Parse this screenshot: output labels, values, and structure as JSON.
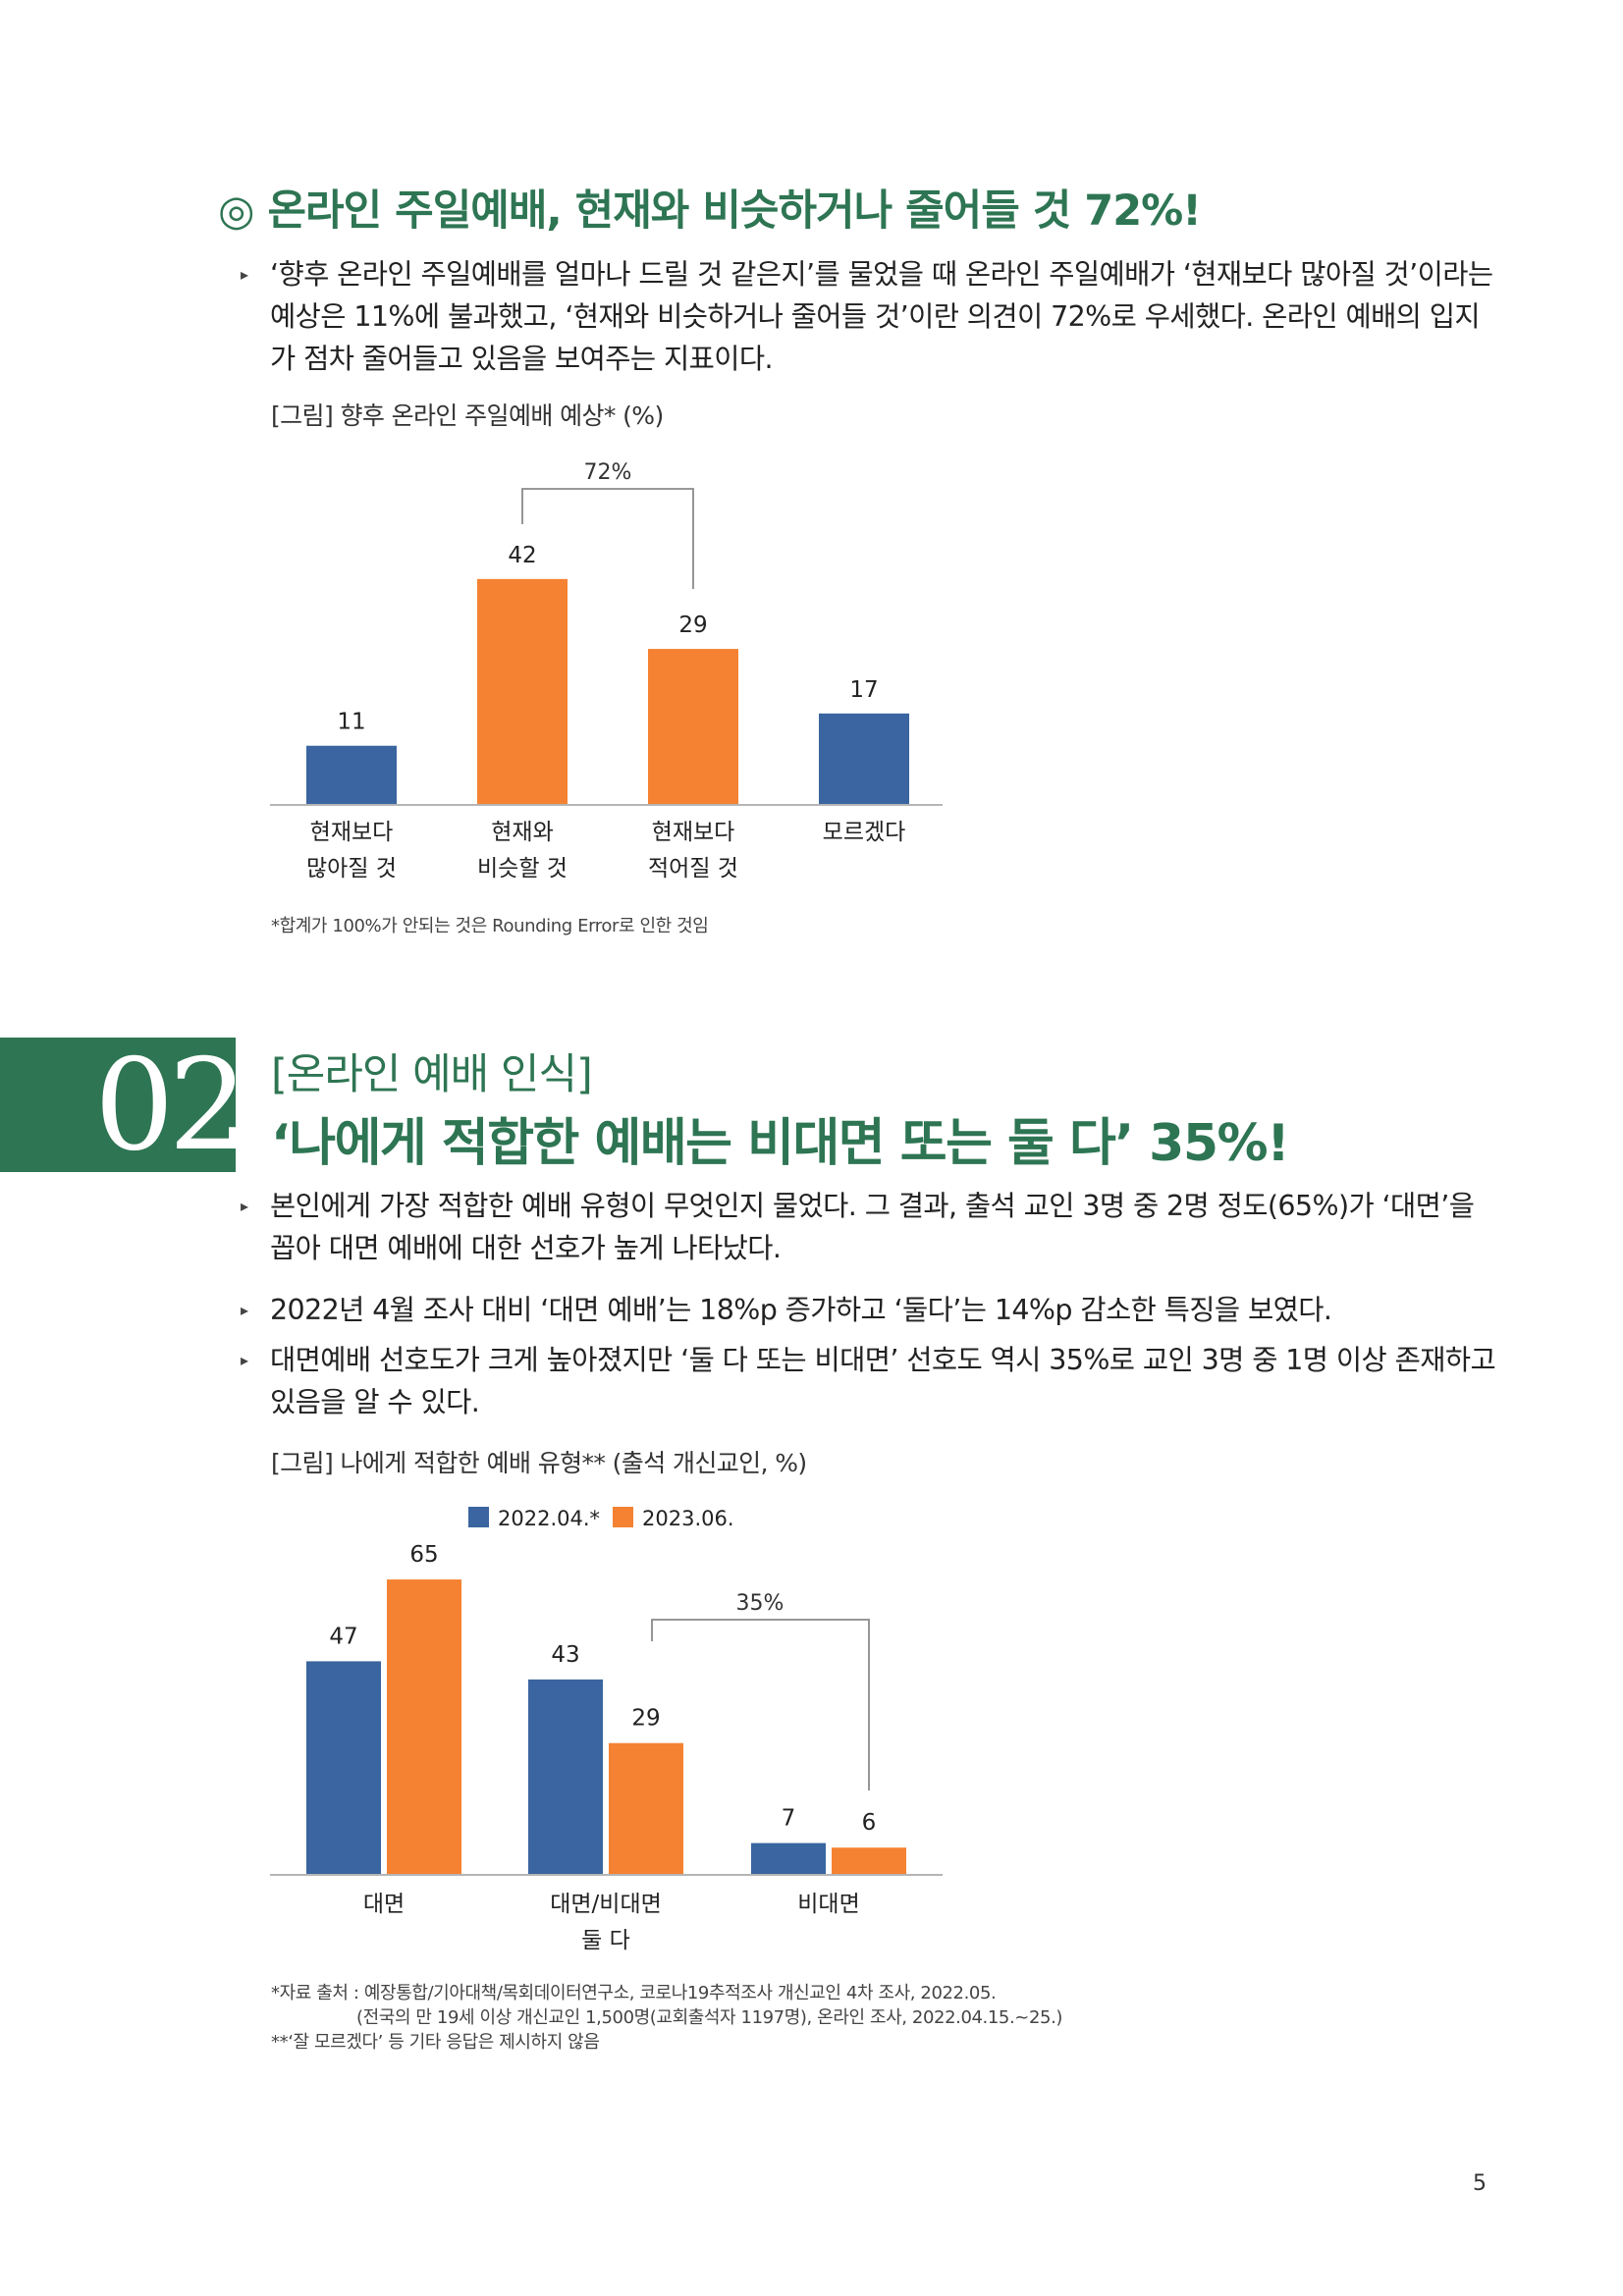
{
  "section1": {
    "heading": "◎ 온라인 주일예배, 현재와 비슷하거나 줄어들 것 72%!",
    "bullet1": "‘향후 온라인 주일예배를 얼마나 드릴 것 같은지’를 물었을 때 온라인 주일예배가 ‘현재보다 많아질 것’이라는 예상은 11%에 불과했고, ‘현재와 비슷하거나 줄어들 것’이란 의견이 72%로 우세했다. 온라인 예배의 입지가 점차 줄어들고 있음을 보여주는 지표이다.",
    "figure_caption": "[그림] 향후 온라인 주일예배 예상* (%)",
    "footnote": "*합계가 100%가 안되는 것은 Rounding Error로 인한 것임",
    "bracket_label": "72%"
  },
  "section2": {
    "number": "02",
    "subtitle": "[온라인 예배 인식]",
    "heading": "‘나에게 적합한 예배는 비대면 또는 둘 다’ 35%!",
    "bullets": [
      "본인에게 가장 적합한 예배 유형이 무엇인지 물었다. 그 결과, 출석 교인 3명 중 2명 정도(65%)가 ‘대면’을 꼽아 대면 예배에 대한 선호가 높게 나타났다.",
      "2022년 4월 조사 대비 ‘대면 예배’는 18%p 증가하고 ‘둘다’는 14%p 감소한 특징을 보였다.",
      "대면예배 선호도가 크게 높아졌지만 ‘둘 다 또는 비대면’ 선호도 역시 35%로 교인 3명 중 1명 이상 존재하고 있음을 알 수 있다."
    ],
    "figure_caption": "[그림] 나에게 적합한 예배 유형** (출석 개신교인, %)",
    "bracket_label": "35%",
    "notes": [
      "*자료 출처 : 예장통합/기아대책/목회데이터연구소, 코로나19추적조사 개신교인 4차 조사, 2022.05.",
      "(전국의 만 19세 이상 개신교인 1,500명(교회출석자 1197명), 온라인 조사, 2022.04.15.~25.)",
      "**‘잘 모르겠다’ 등 기타 응답은 제시하지 않음"
    ]
  },
  "page_number": "5",
  "colors": {
    "accent_green": "#2e7553",
    "blue": "#3a65a0",
    "orange": "#f58232"
  },
  "chart_data": [
    {
      "type": "bar",
      "title": "[그림] 향후 온라인 주일예배 예상* (%)",
      "categories": [
        "현재보다\n많아질 것",
        "현재와\n비슷할 것",
        "현재보다\n적어질 것",
        "모르겠다"
      ],
      "values": [
        11,
        42,
        29,
        17
      ],
      "bar_colors": [
        "#3a65a0",
        "#f58232",
        "#f58232",
        "#3a65a0"
      ],
      "annotations": [
        {
          "text": "72%",
          "spans": [
            1,
            2
          ]
        }
      ],
      "ylim": [
        0,
        42
      ],
      "grid": false
    },
    {
      "type": "bar",
      "title": "[그림] 나에게 적합한 예배 유형** (출석 개신교인, %)",
      "categories": [
        "대면",
        "대면/비대면\n둘 다",
        "비대면"
      ],
      "series": [
        {
          "name": "2022.04.*",
          "values": [
            47,
            43,
            7
          ],
          "color": "#3a65a0"
        },
        {
          "name": "2023.06.",
          "values": [
            65,
            29,
            6
          ],
          "color": "#f58232"
        }
      ],
      "annotations": [
        {
          "text": "35%",
          "spans": [
            [
              1,
              1
            ],
            [
              2,
              1
            ]
          ]
        }
      ],
      "legend": "top",
      "ylim": [
        0,
        65
      ],
      "grid": false
    }
  ]
}
